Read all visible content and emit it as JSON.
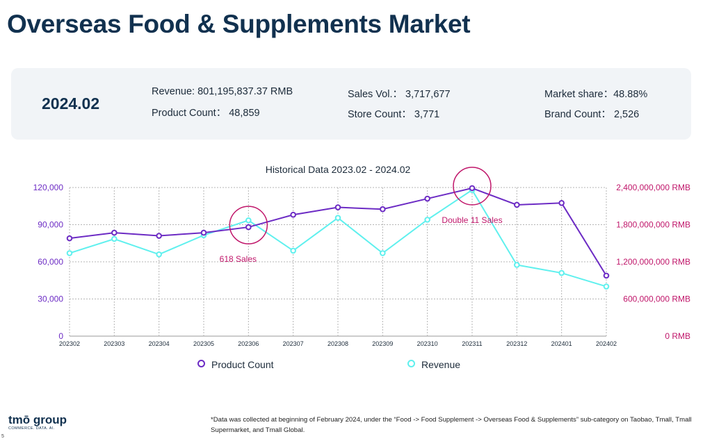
{
  "title": "Overseas Food & Supplements Market",
  "summary": {
    "period": "2024.02",
    "revenue": "Revenue:   801,195,837.37 RMB",
    "product_count": "Product Count：  48,859",
    "sales_vol": "Sales Vol.：  3,717,677",
    "store_count": "Store Count：   3,771",
    "market_share": "Market share：48.88%",
    "brand_count": "Brand Count：   2,526"
  },
  "chart_data": {
    "type": "line",
    "title": "Historical Data 2023.02 - 2024.02",
    "categories": [
      "202302",
      "202303",
      "202304",
      "202305",
      "202306",
      "202307",
      "202308",
      "202309",
      "202310",
      "202311",
      "202312",
      "202401",
      "202402"
    ],
    "series": [
      {
        "name": "Product Count",
        "axis": "left",
        "color": "#6c2bc4",
        "values": [
          79000,
          83500,
          81000,
          83500,
          88000,
          98000,
          104000,
          102500,
          111000,
          119500,
          106000,
          107500,
          48859
        ]
      },
      {
        "name": "Revenue",
        "axis": "right",
        "color": "#5ff0ee",
        "values": [
          1340000000,
          1570000000,
          1320000000,
          1630000000,
          1870000000,
          1380000000,
          1910000000,
          1340000000,
          1880000000,
          2360000000,
          1150000000,
          1020000000,
          801195837
        ]
      }
    ],
    "y_left": {
      "min": 0,
      "max": 120000,
      "ticks": [
        "0",
        "30,000",
        "60,000",
        "90,000",
        "120,000"
      ]
    },
    "y_right": {
      "min": 0,
      "max": 2400000000,
      "ticks": [
        "0 RMB",
        "600,000,000 RMB",
        "1,200,000,000 RMB",
        "1,800,000,000 RMB",
        "2,400,000,000 RMB"
      ]
    },
    "annotations": [
      {
        "label": "618  Sales",
        "category": "202306"
      },
      {
        "label": "Double 11 Sales",
        "category": "202311"
      }
    ],
    "grid": true,
    "legend_position": "bottom"
  },
  "legend": {
    "product_count": "Product Count",
    "revenue": "Revenue"
  },
  "colors": {
    "title": "#11314f",
    "product_count": "#6c2bc4",
    "revenue": "#5ff0ee",
    "right_axis": "#c0166a",
    "annotation": "#c0166a"
  },
  "logo": {
    "name": "tmō group",
    "tagline": "COMMERCE. DATA. AI."
  },
  "page_number": "5",
  "footnote": "*Data was collected at beginning of February 2024, under the “Food -> Food Supplement -> Overseas Food & Supplements” sub-category on Taobao, Tmall, Tmall Supermarket, and Tmall Global."
}
